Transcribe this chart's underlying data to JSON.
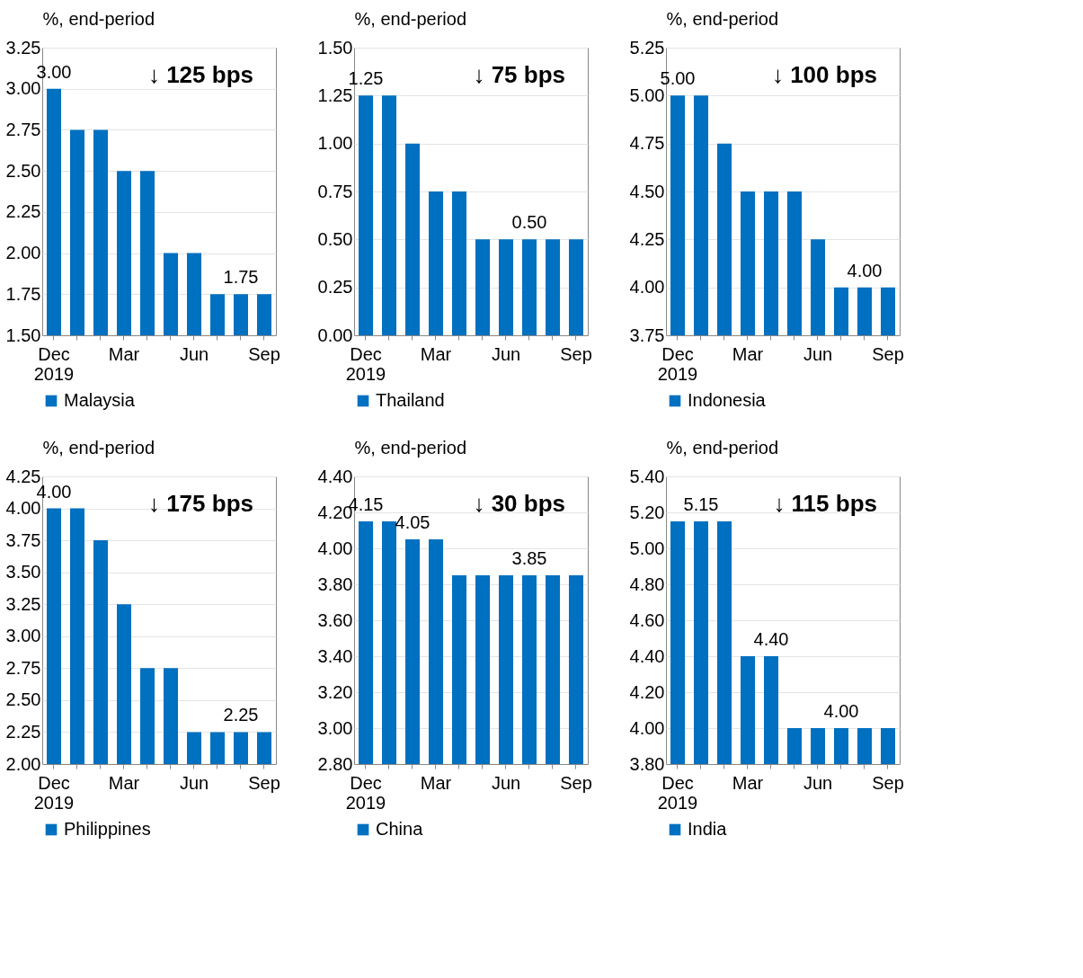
{
  "chart_data": [
    {
      "type": "bar",
      "ylabel": "%, end-period",
      "categories": [
        "Dec 2019",
        null,
        null,
        "Mar",
        null,
        null,
        "Jun",
        null,
        null,
        "Sep"
      ],
      "series": [
        {
          "name": "Malaysia",
          "color": "#0070c0",
          "values": [
            3.0,
            2.75,
            2.75,
            2.5,
            2.5,
            2.0,
            2.0,
            1.75,
            1.75,
            1.75
          ],
          "value_labels": [
            "3.00",
            null,
            null,
            null,
            null,
            null,
            null,
            null,
            "1.75",
            null
          ]
        }
      ],
      "ylim": [
        1.5,
        3.25
      ],
      "yticks": [
        {
          "value": 1.5,
          "label": "1.50"
        },
        {
          "value": 1.75,
          "label": "1.75"
        },
        {
          "value": 2,
          "label": "2.00"
        },
        {
          "value": 2.25,
          "label": "2.25"
        },
        {
          "value": 2.5,
          "label": "2.50"
        },
        {
          "value": 2.75,
          "label": "2.75"
        },
        {
          "value": 3,
          "label": "3.00"
        },
        {
          "value": 3.25,
          "label": "3.25"
        }
      ],
      "grid": "y",
      "legend": "bottom",
      "annotations": [
        "↓ 125 bps"
      ]
    },
    {
      "type": "bar",
      "ylabel": "%, end-period",
      "categories": [
        "Dec 2019",
        null,
        null,
        "Mar",
        null,
        null,
        "Jun",
        null,
        null,
        "Sep"
      ],
      "series": [
        {
          "name": "Thailand",
          "color": "#0070c0",
          "values": [
            1.25,
            1.25,
            1.0,
            0.75,
            0.75,
            0.5,
            0.5,
            0.5,
            0.5,
            0.5
          ],
          "value_labels": [
            "1.25",
            null,
            null,
            null,
            null,
            null,
            null,
            "0.50",
            null,
            null
          ]
        }
      ],
      "ylim": [
        0,
        1.5
      ],
      "yticks": [
        {
          "value": 0,
          "label": "0.00"
        },
        {
          "value": 0.25,
          "label": "0.25"
        },
        {
          "value": 0.5,
          "label": "0.50"
        },
        {
          "value": 0.75,
          "label": "0.75"
        },
        {
          "value": 1,
          "label": "1.00"
        },
        {
          "value": 1.25,
          "label": "1.25"
        },
        {
          "value": 1.5,
          "label": "1.50"
        }
      ],
      "grid": "y",
      "legend": "bottom",
      "annotations": [
        "↓ 75 bps"
      ]
    },
    {
      "type": "bar",
      "ylabel": "%, end-period",
      "categories": [
        "Dec 2019",
        null,
        null,
        "Mar",
        null,
        null,
        "Jun",
        null,
        null,
        "Sep"
      ],
      "series": [
        {
          "name": "Indonesia",
          "color": "#0070c0",
          "values": [
            5.0,
            5.0,
            4.75,
            4.5,
            4.5,
            4.5,
            4.25,
            4.0,
            4.0,
            4.0
          ],
          "value_labels": [
            "5.00",
            null,
            null,
            null,
            null,
            null,
            null,
            null,
            "4.00",
            null
          ]
        }
      ],
      "ylim": [
        3.75,
        5.25
      ],
      "yticks": [
        {
          "value": 3.75,
          "label": "3.75"
        },
        {
          "value": 4,
          "label": "4.00"
        },
        {
          "value": 4.25,
          "label": "4.25"
        },
        {
          "value": 4.5,
          "label": "4.50"
        },
        {
          "value": 4.75,
          "label": "4.75"
        },
        {
          "value": 5,
          "label": "5.00"
        },
        {
          "value": 5.25,
          "label": "5.25"
        }
      ],
      "grid": "y",
      "legend": "bottom",
      "annotations": [
        "↓ 100 bps"
      ]
    },
    {
      "type": "bar",
      "ylabel": "%, end-period",
      "categories": [
        "Dec 2019",
        null,
        null,
        "Mar",
        null,
        null,
        "Jun",
        null,
        null,
        "Sep"
      ],
      "series": [
        {
          "name": "Philippines",
          "color": "#0070c0",
          "values": [
            4.0,
            4.0,
            3.75,
            3.25,
            2.75,
            2.75,
            2.25,
            2.25,
            2.25,
            2.25
          ],
          "value_labels": [
            "4.00",
            null,
            null,
            null,
            null,
            null,
            null,
            null,
            "2.25",
            null
          ]
        }
      ],
      "ylim": [
        2,
        4.25
      ],
      "yticks": [
        {
          "value": 2,
          "label": "2.00"
        },
        {
          "value": 2.25,
          "label": "2.25"
        },
        {
          "value": 2.5,
          "label": "2.50"
        },
        {
          "value": 2.75,
          "label": "2.75"
        },
        {
          "value": 3,
          "label": "3.00"
        },
        {
          "value": 3.25,
          "label": "3.25"
        },
        {
          "value": 3.5,
          "label": "3.50"
        },
        {
          "value": 3.75,
          "label": "3.75"
        },
        {
          "value": 4,
          "label": "4.00"
        },
        {
          "value": 4.25,
          "label": "4.25"
        }
      ],
      "grid": "y",
      "legend": "bottom",
      "annotations": [
        "↓ 175 bps"
      ]
    },
    {
      "type": "bar",
      "ylabel": "%, end-period",
      "categories": [
        "Dec 2019",
        null,
        null,
        "Mar",
        null,
        null,
        "Jun",
        null,
        null,
        "Sep"
      ],
      "series": [
        {
          "name": "China",
          "color": "#0070c0",
          "values": [
            4.15,
            4.15,
            4.05,
            4.05,
            3.85,
            3.85,
            3.85,
            3.85,
            3.85,
            3.85
          ],
          "value_labels": [
            "4.15",
            null,
            "4.05",
            null,
            null,
            null,
            null,
            "3.85",
            null,
            null
          ]
        }
      ],
      "ylim": [
        2.8,
        4.4
      ],
      "yticks": [
        {
          "value": 2.8,
          "label": "2.80"
        },
        {
          "value": 3,
          "label": "3.00"
        },
        {
          "value": 3.2,
          "label": "3.20"
        },
        {
          "value": 3.4,
          "label": "3.40"
        },
        {
          "value": 3.6,
          "label": "3.60"
        },
        {
          "value": 3.8,
          "label": "3.80"
        },
        {
          "value": 4,
          "label": "4.00"
        },
        {
          "value": 4.2,
          "label": "4.20"
        },
        {
          "value": 4.4,
          "label": "4.40"
        }
      ],
      "grid": "y",
      "legend": "bottom",
      "annotations": [
        "↓ 30 bps"
      ]
    },
    {
      "type": "bar",
      "ylabel": "%, end-period",
      "categories": [
        "Dec 2019",
        null,
        null,
        "Mar",
        null,
        null,
        "Jun",
        null,
        null,
        "Sep"
      ],
      "series": [
        {
          "name": "India",
          "color": "#0070c0",
          "values": [
            5.15,
            5.15,
            5.15,
            4.4,
            4.4,
            4.0,
            4.0,
            4.0,
            4.0,
            4.0
          ],
          "value_labels": [
            null,
            "5.15",
            null,
            null,
            "4.40",
            null,
            null,
            "4.00",
            null,
            null
          ]
        }
      ],
      "ylim": [
        3.8,
        5.4
      ],
      "yticks": [
        {
          "value": 3.8,
          "label": "3.80"
        },
        {
          "value": 4,
          "label": "4.00"
        },
        {
          "value": 4.2,
          "label": "4.20"
        },
        {
          "value": 4.4,
          "label": "4.40"
        },
        {
          "value": 4.6,
          "label": "4.60"
        },
        {
          "value": 4.8,
          "label": "4.80"
        },
        {
          "value": 5,
          "label": "5.00"
        },
        {
          "value": 5.2,
          "label": "5.20"
        },
        {
          "value": 5.4,
          "label": "5.40"
        }
      ],
      "grid": "y",
      "legend": "bottom",
      "annotations": [
        "↓ 115 bps"
      ]
    }
  ]
}
